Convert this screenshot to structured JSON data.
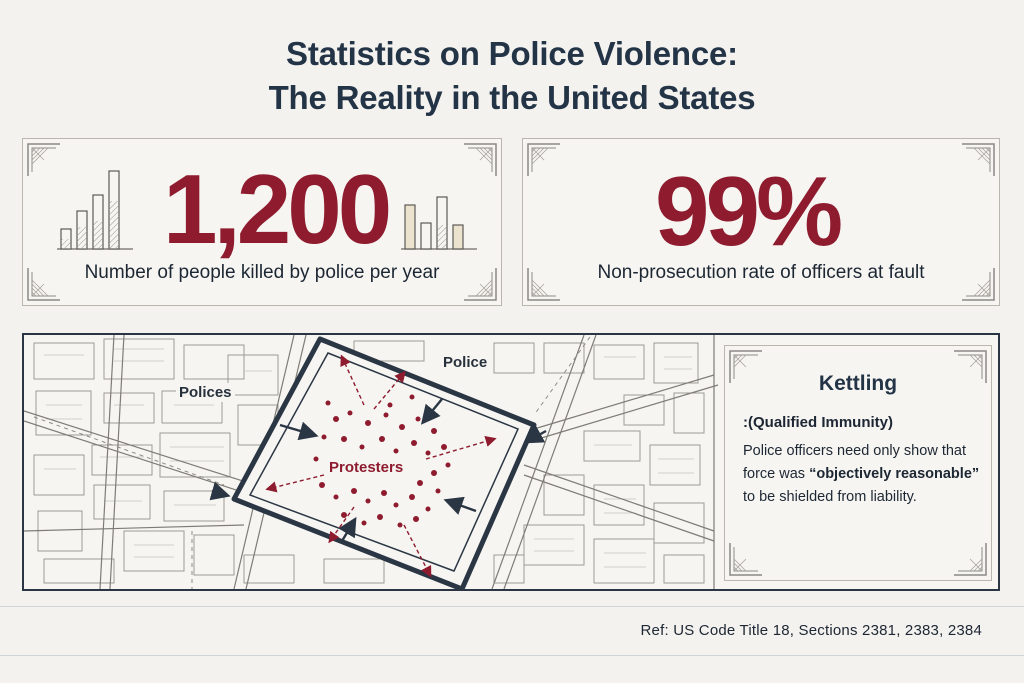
{
  "header": {
    "title_line1": "Statistics on Police Violence:",
    "title_line2": "The Reality in the United States"
  },
  "stats": [
    {
      "value": "1,200",
      "label": "Number of people killed by police per year"
    },
    {
      "value": "99%",
      "label": "Non-prosecution rate of officers at fault"
    }
  ],
  "map": {
    "label_polices": "Polices",
    "label_police": "Police",
    "label_protesters": "Protesters"
  },
  "info": {
    "title": "Kettling",
    "subtitle": ":(Qualified Immunity)",
    "body_before": "Police officers need only show that force was ",
    "body_emphasis": "“objectively reasonable”",
    "body_after": " to be shielded from liability."
  },
  "footer": {
    "reference": "Ref: US Code Title 18, Sections 2381, 2383, 2384"
  },
  "colors": {
    "accent": "#8e1b2e",
    "ink": "#243447",
    "background": "#f3f2ef"
  }
}
